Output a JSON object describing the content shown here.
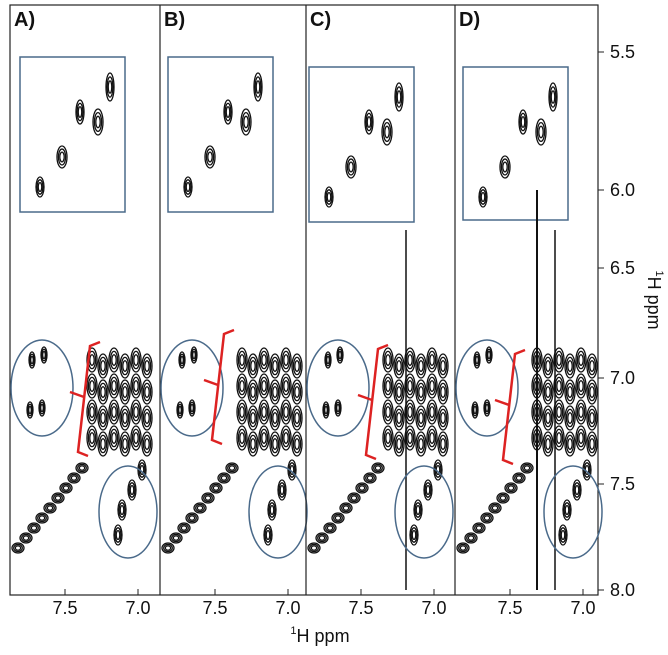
{
  "panels": [
    {
      "label": "A)"
    },
    {
      "label": "B)"
    },
    {
      "label": "C)"
    },
    {
      "label": "D)"
    }
  ],
  "x_ticks": [
    "7.5",
    "7.0"
  ],
  "y_ticks": [
    "5.5",
    "6.0",
    "6.5",
    "7.0",
    "7.5",
    "8.0"
  ],
  "x_axis_label": {
    "isotope": "1",
    "text": "H ppm"
  },
  "y_axis_label": {
    "isotope": "1",
    "text": "H ppm"
  }
}
